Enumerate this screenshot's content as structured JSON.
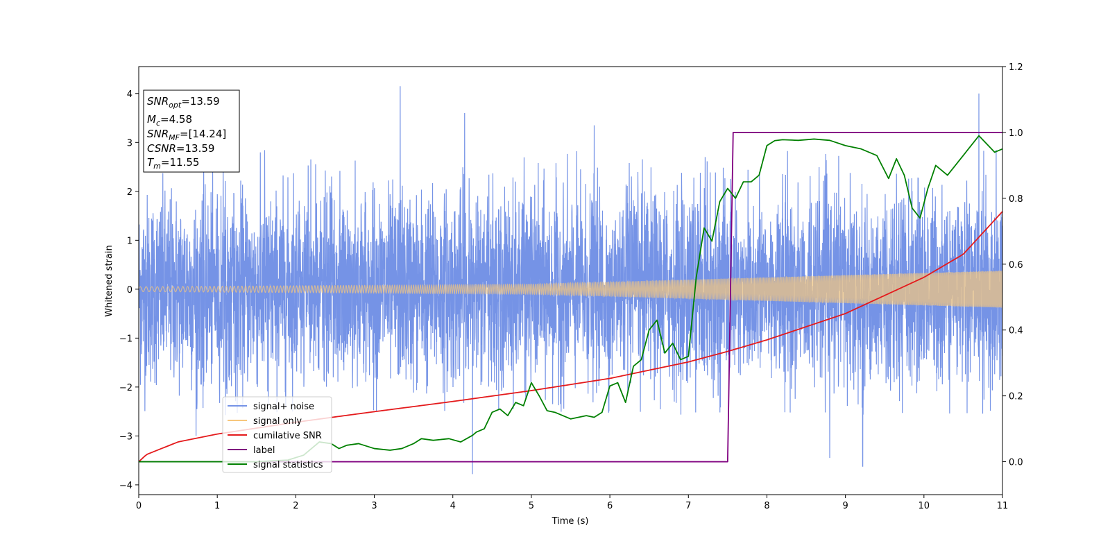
{
  "chart_data": {
    "type": "line",
    "xlabel": "Time (s)",
    "ylabel": "Whitened strain",
    "xlim": [
      0,
      11
    ],
    "ylim": [
      -4.2,
      4.55
    ],
    "ylim_right": [
      -0.1,
      1.2
    ],
    "x_ticks": [
      "0",
      "1",
      "2",
      "3",
      "4",
      "5",
      "6",
      "7",
      "8",
      "9",
      "10",
      "11"
    ],
    "y_ticks": [
      "−4",
      "−3",
      "−2",
      "−1",
      "0",
      "1",
      "2",
      "3",
      "4"
    ],
    "y_right_ticks": [
      "0.0",
      "0.2",
      "0.4",
      "0.6",
      "0.8",
      "1.0",
      "1.2"
    ],
    "annotation": {
      "line1": {
        "sym": "SNR",
        "sub": "opt",
        "value": "=13.59"
      },
      "line2": {
        "sym": "M",
        "sub": "c",
        "value": "=4.58"
      },
      "line3": {
        "sym": "SNR",
        "sub": "MF",
        "value": "=[14.24]"
      },
      "line4": {
        "sym": "CSNR",
        "sub": "",
        "value": "=13.59"
      },
      "line5": {
        "sym": "T",
        "sub": "m",
        "value": "=11.55"
      }
    },
    "legend": {
      "placement": "lower-left",
      "entries": [
        {
          "name": "signal+ noise",
          "color": "#7593e6"
        },
        {
          "name": "signal only",
          "color": "#f7c77c"
        },
        {
          "name": "cumilative SNR",
          "color": "#e41a1c"
        },
        {
          "name": "label",
          "color": "#800080"
        },
        {
          "name": "signal statistics",
          "color": "#008000"
        }
      ]
    },
    "series": [
      {
        "name": "signal+ noise",
        "axis": "left",
        "color": "#7593e6",
        "description": "dense noisy strain, roughly uniform envelope",
        "envelope_typical": [
          -1.7,
          2.0
        ],
        "peaks": [
          {
            "x": 3.33,
            "y": 4.15
          },
          {
            "x": 4.25,
            "y": -3.78
          },
          {
            "x": 4.15,
            "y": 3.6
          },
          {
            "x": 10.7,
            "y": 4.0
          },
          {
            "x": 5.8,
            "y": 3.35
          },
          {
            "x": 9.22,
            "y": -3.62
          },
          {
            "x": 8.8,
            "y": -3.45
          },
          {
            "x": 0.73,
            "y": -3.0
          }
        ]
      },
      {
        "name": "signal only",
        "axis": "left",
        "color": "#f7c77c",
        "description": "chirp with slowly growing amplitude",
        "amplitude": [
          {
            "x": 0,
            "y": 0.05
          },
          {
            "x": 5,
            "y": 0.1
          },
          {
            "x": 11,
            "y": 0.38
          }
        ]
      },
      {
        "name": "cumilative SNR",
        "axis": "right",
        "color": "#e41a1c",
        "x": [
          0,
          0.1,
          0.5,
          1,
          2,
          3,
          4,
          5,
          6,
          7,
          7.5,
          8,
          9,
          10,
          10.5,
          11
        ],
        "y": [
          0.0,
          0.022,
          0.06,
          0.084,
          0.12,
          0.152,
          0.183,
          0.216,
          0.253,
          0.303,
          0.335,
          0.37,
          0.45,
          0.56,
          0.63,
          0.76
        ]
      },
      {
        "name": "label",
        "axis": "right",
        "color": "#800080",
        "x": [
          0,
          7.5,
          7.57,
          11
        ],
        "y": [
          0,
          0,
          1,
          1
        ]
      },
      {
        "name": "signal statistics",
        "axis": "right",
        "color": "#008000",
        "x": [
          0,
          0.5,
          1,
          1.5,
          1.9,
          2.1,
          2.3,
          2.45,
          2.55,
          2.65,
          2.8,
          3.0,
          3.2,
          3.35,
          3.5,
          3.6,
          3.75,
          3.95,
          4.1,
          4.25,
          4.3,
          4.4,
          4.5,
          4.6,
          4.7,
          4.8,
          4.9,
          5.0,
          5.1,
          5.2,
          5.3,
          5.4,
          5.5,
          5.6,
          5.7,
          5.8,
          5.9,
          6.0,
          6.1,
          6.2,
          6.3,
          6.4,
          6.5,
          6.6,
          6.7,
          6.8,
          6.9,
          7.0,
          7.1,
          7.2,
          7.3,
          7.4,
          7.5,
          7.6,
          7.7,
          7.8,
          7.9,
          8.0,
          8.1,
          8.2,
          8.4,
          8.6,
          8.8,
          9.0,
          9.2,
          9.4,
          9.55,
          9.65,
          9.75,
          9.85,
          9.95,
          10.05,
          10.15,
          10.3,
          10.5,
          10.7,
          10.9,
          11.0
        ],
        "y": [
          0.0,
          0.0,
          0.0,
          0.0,
          0.005,
          0.02,
          0.06,
          0.055,
          0.04,
          0.05,
          0.055,
          0.04,
          0.035,
          0.04,
          0.055,
          0.07,
          0.065,
          0.07,
          0.06,
          0.08,
          0.09,
          0.1,
          0.15,
          0.16,
          0.14,
          0.18,
          0.17,
          0.24,
          0.2,
          0.155,
          0.15,
          0.14,
          0.13,
          0.135,
          0.14,
          0.135,
          0.15,
          0.23,
          0.24,
          0.18,
          0.29,
          0.31,
          0.4,
          0.43,
          0.33,
          0.36,
          0.31,
          0.32,
          0.56,
          0.71,
          0.67,
          0.79,
          0.83,
          0.8,
          0.85,
          0.85,
          0.87,
          0.96,
          0.975,
          0.978,
          0.976,
          0.98,
          0.976,
          0.96,
          0.95,
          0.93,
          0.86,
          0.92,
          0.87,
          0.77,
          0.74,
          0.83,
          0.9,
          0.87,
          0.93,
          0.99,
          0.94,
          0.95
        ]
      }
    ]
  }
}
